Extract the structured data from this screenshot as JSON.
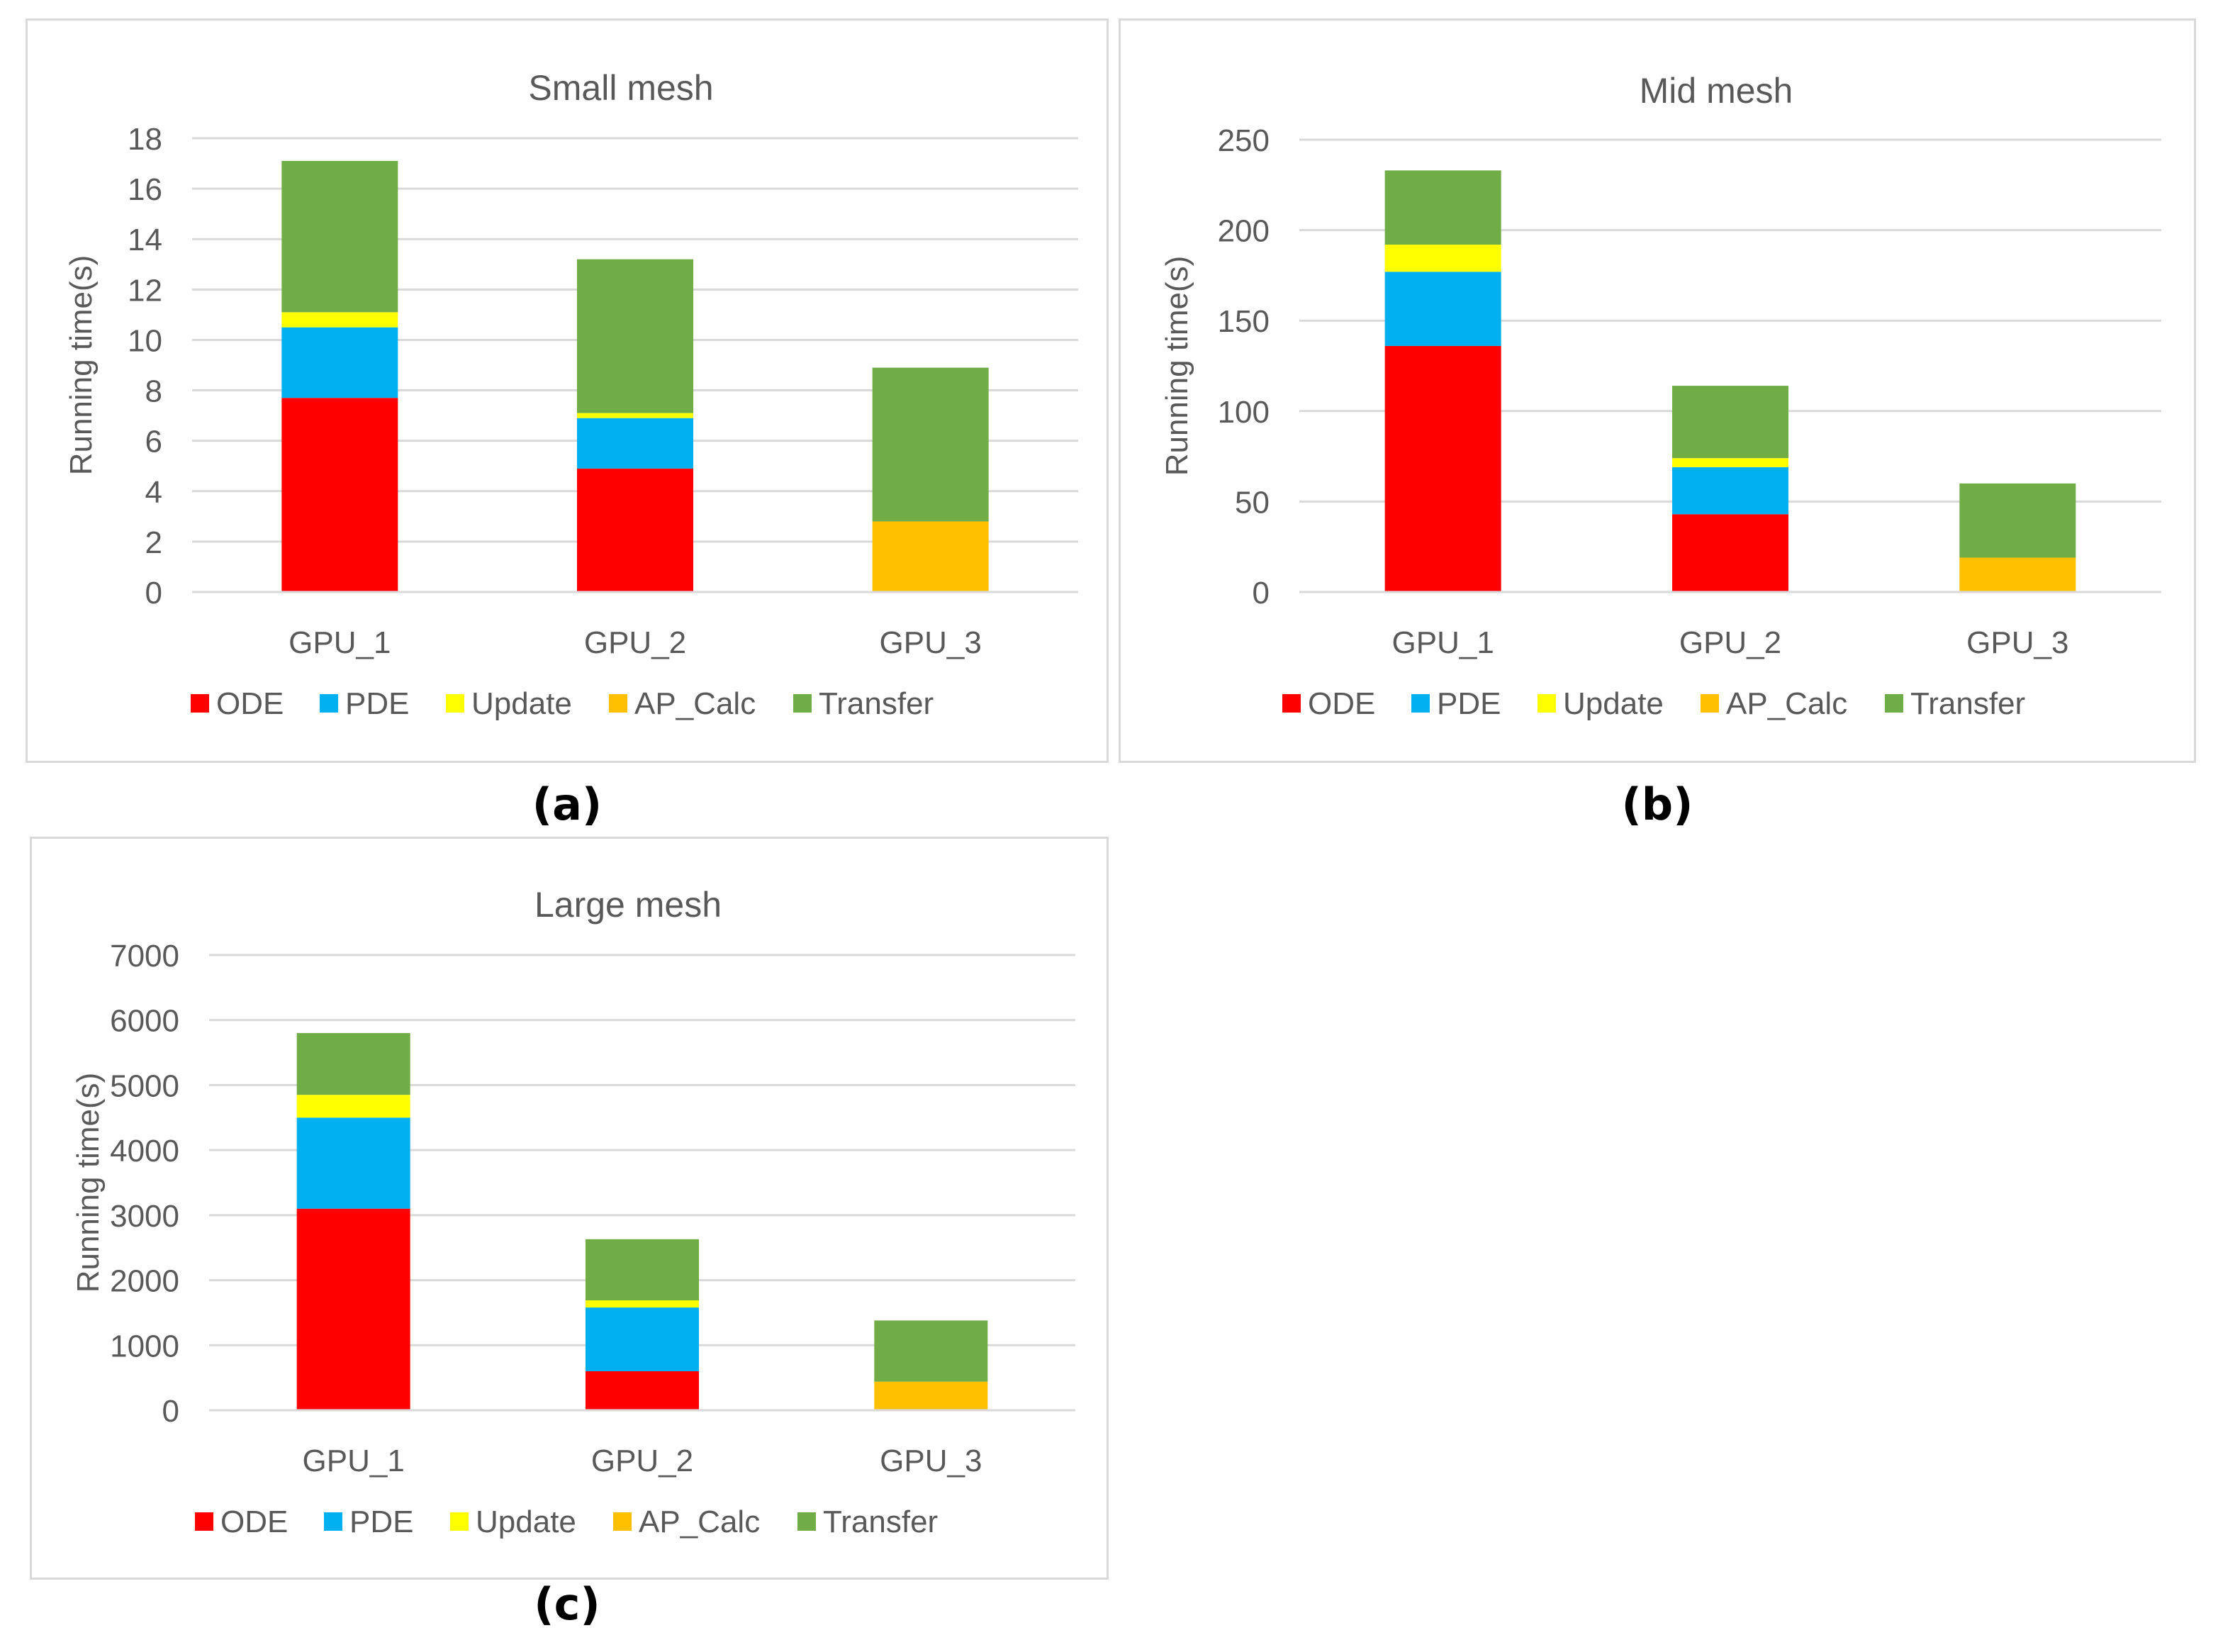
{
  "chart_data": [
    {
      "type": "bar",
      "stacked": true,
      "title": "Small mesh",
      "caption": "(a)",
      "xlabel": "",
      "ylabel": "Running time(s)",
      "ylim": [
        0,
        18
      ],
      "yticks": [
        0,
        2,
        4,
        6,
        8,
        10,
        12,
        14,
        16,
        18
      ],
      "categories": [
        "GPU_1",
        "GPU_2",
        "GPU_3"
      ],
      "series": [
        {
          "name": "ODE",
          "color": "#ff0000",
          "values": [
            7.7,
            4.9,
            0
          ]
        },
        {
          "name": "PDE",
          "color": "#00b0f0",
          "values": [
            2.8,
            2.0,
            0
          ]
        },
        {
          "name": "Update",
          "color": "#ffff00",
          "values": [
            0.6,
            0.2,
            0
          ]
        },
        {
          "name": "AP_Calc",
          "color": "#ffc000",
          "values": [
            0,
            0,
            2.8
          ]
        },
        {
          "name": "Transfer",
          "color": "#70ad47",
          "values": [
            6.0,
            6.1,
            6.1
          ]
        }
      ],
      "grid": true,
      "legend": "bottom"
    },
    {
      "type": "bar",
      "stacked": true,
      "title": "Mid mesh",
      "caption": "(b)",
      "xlabel": "",
      "ylabel": "Running time(s)",
      "ylim": [
        0,
        250
      ],
      "yticks": [
        0,
        50,
        100,
        150,
        200,
        250
      ],
      "categories": [
        "GPU_1",
        "GPU_2",
        "GPU_3"
      ],
      "series": [
        {
          "name": "ODE",
          "color": "#ff0000",
          "values": [
            136,
            43,
            0
          ]
        },
        {
          "name": "PDE",
          "color": "#00b0f0",
          "values": [
            41,
            26,
            0
          ]
        },
        {
          "name": "Update",
          "color": "#ffff00",
          "values": [
            15,
            5,
            0
          ]
        },
        {
          "name": "AP_Calc",
          "color": "#ffc000",
          "values": [
            0,
            0,
            19
          ]
        },
        {
          "name": "Transfer",
          "color": "#70ad47",
          "values": [
            41,
            40,
            41
          ]
        }
      ],
      "grid": true,
      "legend": "bottom"
    },
    {
      "type": "bar",
      "stacked": true,
      "title": "Large mesh",
      "caption": "(c)",
      "xlabel": "",
      "ylabel": "Running time(s)",
      "ylim": [
        0,
        7000
      ],
      "yticks": [
        0,
        1000,
        2000,
        3000,
        4000,
        5000,
        6000,
        7000
      ],
      "categories": [
        "GPU_1",
        "GPU_2",
        "GPU_3"
      ],
      "series": [
        {
          "name": "ODE",
          "color": "#ff0000",
          "values": [
            3100,
            600,
            0
          ]
        },
        {
          "name": "PDE",
          "color": "#00b0f0",
          "values": [
            1400,
            980,
            0
          ]
        },
        {
          "name": "Update",
          "color": "#ffff00",
          "values": [
            350,
            110,
            0
          ]
        },
        {
          "name": "AP_Calc",
          "color": "#ffc000",
          "values": [
            0,
            0,
            440
          ]
        },
        {
          "name": "Transfer",
          "color": "#70ad47",
          "values": [
            950,
            940,
            940
          ]
        }
      ],
      "grid": true,
      "legend": "bottom"
    }
  ]
}
